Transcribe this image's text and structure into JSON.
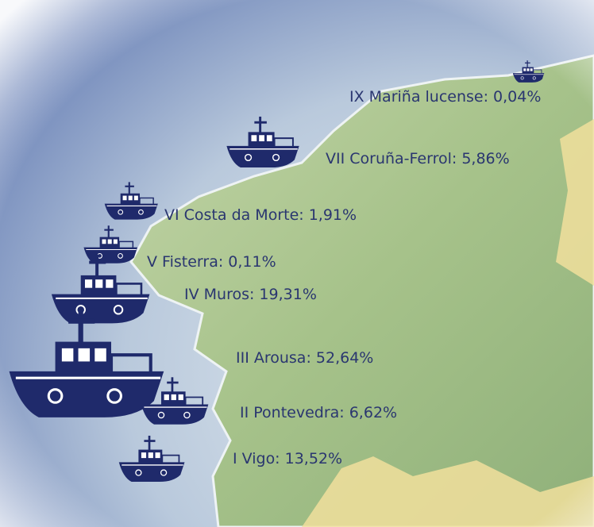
{
  "regions": [
    {
      "label": "IX Mariña lucense: 0,04%"
    },
    {
      "label": "VII Coruña-Ferrol: 5,86%"
    },
    {
      "label": "VI Costa da Morte: 1,91%"
    },
    {
      "label": "V Fisterra: 0,11%"
    },
    {
      "label": "IV Muros: 19,31%"
    },
    {
      "label": "III Arousa: 52,64%"
    },
    {
      "label": "II Pontevedra: 6,62%"
    },
    {
      "label": "I Vigo: 13,52%"
    }
  ]
}
